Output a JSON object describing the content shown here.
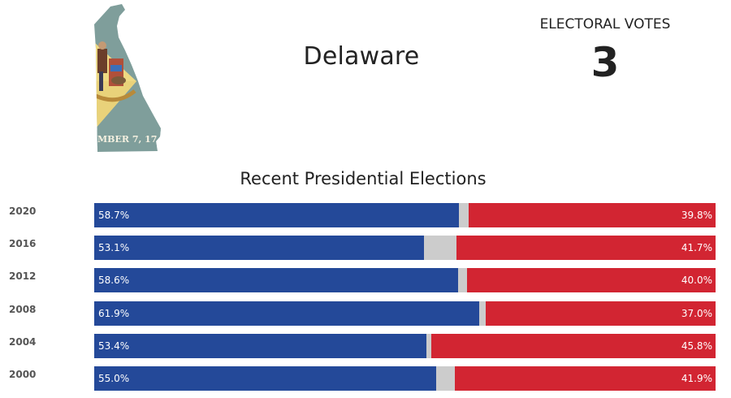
{
  "header": {
    "state_name": "Delaware",
    "electoral_votes_label": "ELECTORAL VOTES",
    "electoral_votes_value": "3",
    "flag_banner_text": "MBER 7, 17"
  },
  "colors": {
    "democratic": "#244999",
    "republican": "#d22532",
    "other": "#cccccc",
    "flag_background": "#7f9e9b",
    "flag_diamond": "#eed982"
  },
  "chart_data": {
    "type": "bar",
    "title": "Recent Presidential Elections",
    "stacked": true,
    "categories": [
      "2020",
      "2016",
      "2012",
      "2008",
      "2004",
      "2000"
    ],
    "series": [
      {
        "values": [
          58.7,
          53.1,
          58.6,
          61.9,
          53.4,
          55.0
        ],
        "labels": [
          "58.7%",
          "53.1%",
          "58.6%",
          "61.9%",
          "53.4%",
          "55.0%"
        ]
      },
      {
        "values": [
          1.5,
          5.2,
          1.4,
          1.1,
          0.8,
          3.1
        ]
      },
      {
        "values": [
          39.8,
          41.7,
          40.0,
          37.0,
          45.8,
          41.9
        ],
        "labels": [
          "39.8%",
          "41.7%",
          "40.0%",
          "37.0%",
          "45.8%",
          "41.9%"
        ]
      }
    ],
    "xlim": [
      0,
      100
    ],
    "orientation": "horizontal"
  }
}
